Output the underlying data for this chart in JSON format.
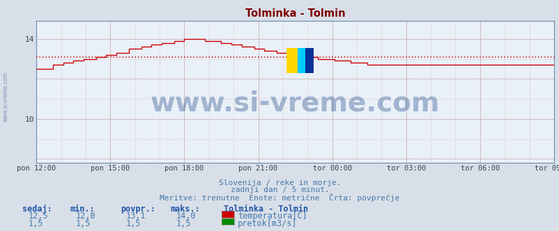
{
  "title": "Tolminka - Tolmin",
  "title_color": "#800000",
  "bg_color": "#d8dfe8",
  "plot_bg_color": "#eaf0f8",
  "grid_color_major": "#c8b0b0",
  "grid_color_minor": "#ddd0d0",
  "x_tick_labels": [
    "pon 12:00",
    "pon 15:00",
    "pon 18:00",
    "pon 21:00",
    "tor 00:00",
    "tor 03:00",
    "tor 06:00",
    "tor 09:00"
  ],
  "x_tick_positions": [
    0,
    36,
    72,
    108,
    144,
    180,
    216,
    252
  ],
  "y_min": 7.8,
  "y_max": 14.9,
  "y_ticks": [
    10,
    14
  ],
  "avg_line_value": 13.1,
  "avg_line_color": "#cc2222",
  "temp_color": "#cc0000",
  "flow_color": "#008800",
  "watermark_text": "www.si-vreme.com",
  "watermark_color": "#1a4488",
  "watermark_alpha": 0.35,
  "watermark_fontsize": 28,
  "subtitle1": "Slovenija / reke in morje.",
  "subtitle2": "zadnji dan / 5 minut.",
  "subtitle3": "Meritve: trenutne  Enote: metrične  Črta: povprečje",
  "subtitle_color": "#4477aa",
  "footer_color": "#2255aa",
  "label_sedaj": "sedaj:",
  "label_min": "min.:",
  "label_povpr": "povpr.:",
  "label_maks": "maks.:",
  "station_label": "Tolminka - Tolmin",
  "temp_sedaj": "12,5",
  "temp_min": "12,0",
  "temp_povpr": "13,1",
  "temp_maks": "14,0",
  "flow_sedaj": "1,5",
  "flow_min": "1,5",
  "flow_povpr": "1,5",
  "flow_maks": "1,5",
  "legend_temp": "temperatura[C]",
  "legend_flow": "pretok[m3/s]",
  "n_points": 253,
  "left_label": "www.si-vreme.com",
  "left_label_color": "#5577aa",
  "spine_color": "#6688aa"
}
